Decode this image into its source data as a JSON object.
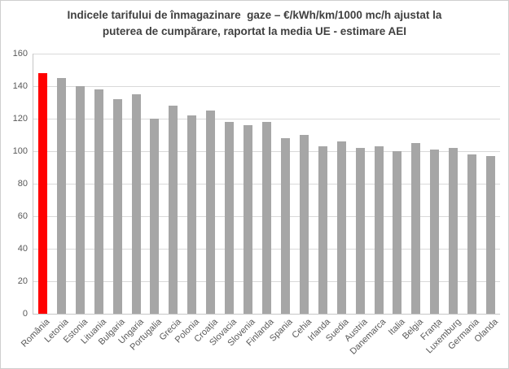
{
  "chart_data": {
    "type": "bar",
    "title": "Indicele tarifului de înmagazinare  gaze – €/kWh/km/1000 mc/h ajustat la puterea de cumpărare, raportat la media UE - estimare AEI",
    "categories": [
      "România",
      "Letonia",
      "Estonia",
      "Lituania",
      "Bulgaria",
      "Ungaria",
      "Portugalia",
      "Grecia",
      "Polonia",
      "Croația",
      "Slovacia",
      "Slovenia",
      "Finlanda",
      "Spania",
      "Cehia",
      "Irlanda",
      "Suedia",
      "Austria",
      "Danemarca",
      "Italia",
      "Belgia",
      "Franța",
      "Luxemburg",
      "Germania",
      "Olanda"
    ],
    "values": [
      148,
      145,
      140,
      138,
      132,
      135,
      120,
      128,
      122,
      125,
      118,
      116,
      118,
      108,
      110,
      103,
      106,
      102,
      103,
      100,
      105,
      101,
      102,
      98,
      97
    ],
    "highlight_category": "România",
    "highlight_index": 0,
    "xlabel": "",
    "ylabel": "",
    "ylim": [
      0,
      160
    ],
    "yticks": [
      0,
      20,
      40,
      60,
      80,
      100,
      120,
      140,
      160
    ],
    "grid": "horizontal",
    "legend": "none",
    "colors": {
      "bar": "#a6a6a6",
      "highlight": "#ff0000",
      "gridline": "#d9d9d9",
      "axis_line": "#c6c6c6",
      "tick_label": "#595959",
      "title": "#404040",
      "background": "#ffffff",
      "frame_border": "#cfcfcf"
    }
  },
  "ui": {
    "title_lines": {
      "line1": "Indicele tarifului de înmagazinare  gaze – €/kWh/km/1000 mc/h ajustat la",
      "line2": "puterea de cumpărare, raportat la media UE - estimare AEI"
    }
  }
}
